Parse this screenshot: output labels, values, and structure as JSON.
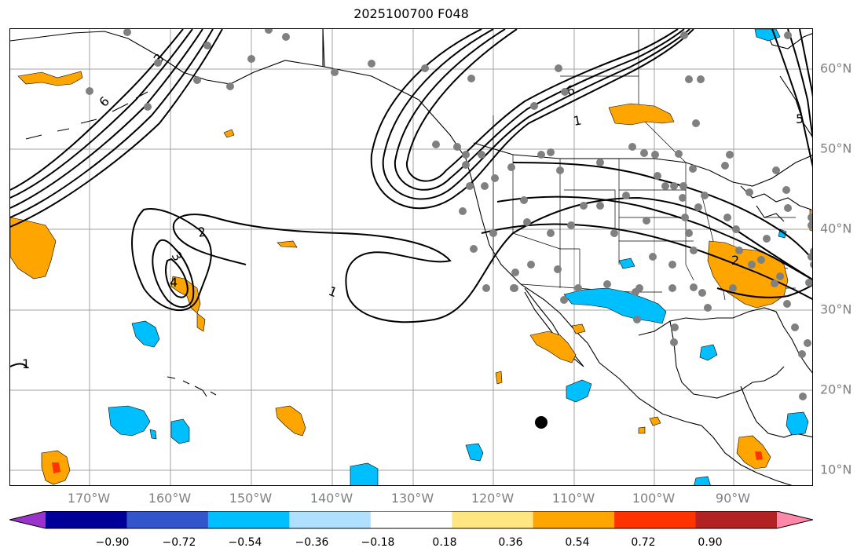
{
  "title": "2025100700 F048",
  "lon_labels": [
    "170°W",
    "160°W",
    "150°W",
    "140°W",
    "130°W",
    "120°W",
    "110°W",
    "100°W",
    "90°W"
  ],
  "lat_labels": [
    "60°N",
    "50°N",
    "40°N",
    "30°N",
    "20°N",
    "10°N"
  ],
  "contour_labels": [
    "1",
    "2",
    "3",
    "4",
    "5",
    "6"
  ],
  "colorbar": {
    "colors": [
      "#9933cc",
      "#000099",
      "#3355cc",
      "#00bfff",
      "#b0e0ff",
      "#ffffff",
      "#ffe680",
      "#ffa500",
      "#ff3300",
      "#b22222",
      "#ff88aa"
    ],
    "tick_labels": [
      "−0.90",
      "−0.72",
      "−0.54",
      "−0.36",
      "−0.18",
      "0.18",
      "0.36",
      "0.54",
      "0.72",
      "0.90"
    ]
  },
  "colors": {
    "positive": "#ffa500",
    "negative": "#00bfff",
    "strong_positive": "#ff3300",
    "station": "#808080",
    "contour": "#000000",
    "grid": "#999999"
  }
}
